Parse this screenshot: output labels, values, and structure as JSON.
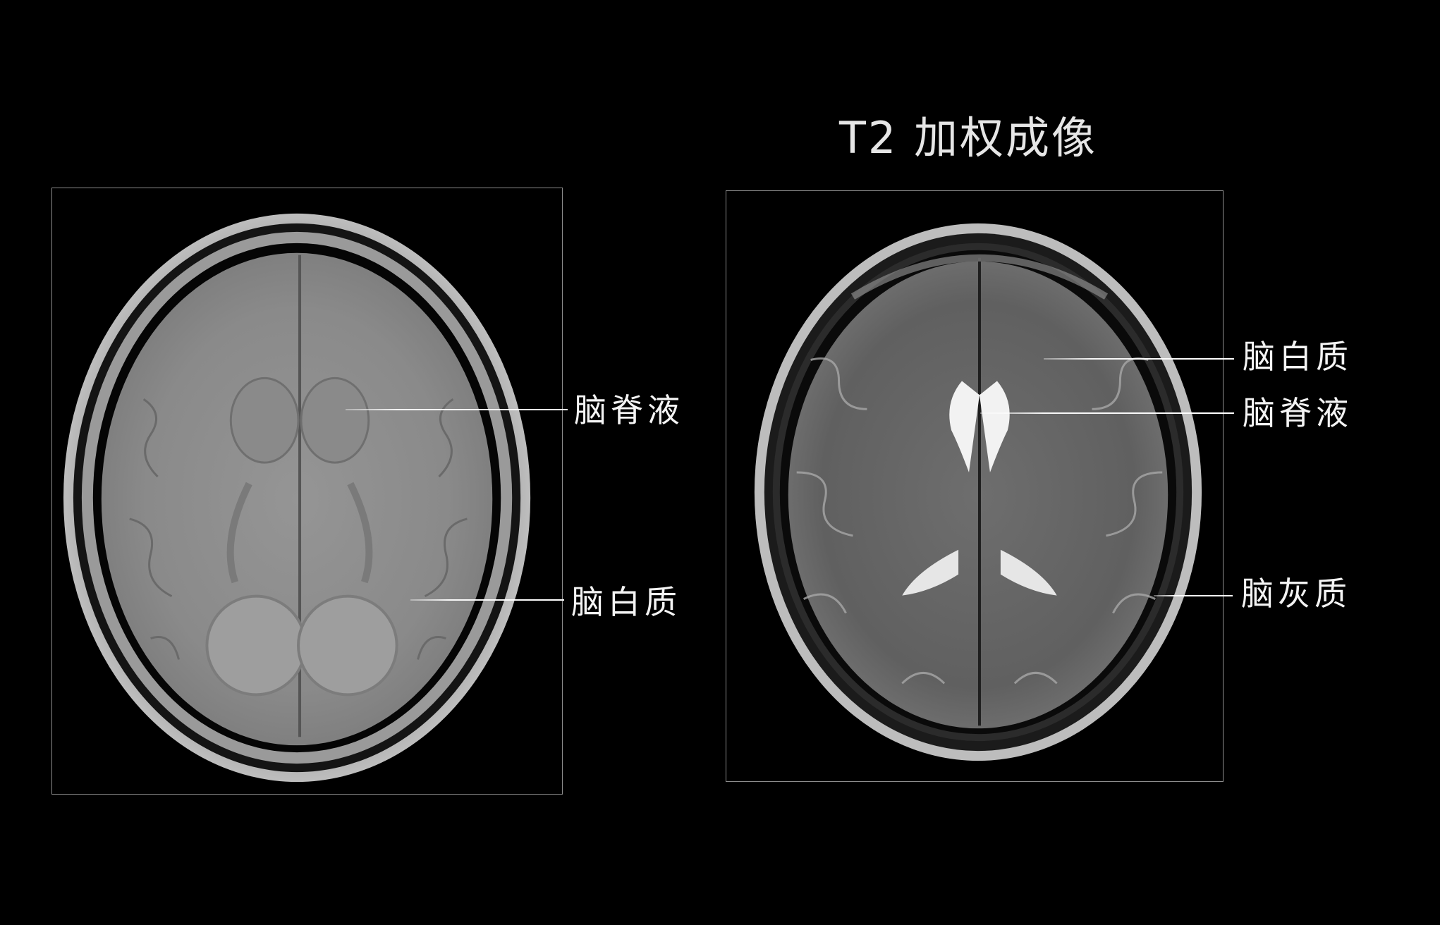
{
  "title": "T2 加权成像",
  "left_panel": {
    "annotations": [
      {
        "label": "脑脊液"
      },
      {
        "label": "脑白质"
      }
    ]
  },
  "right_panel": {
    "annotations": [
      {
        "label": "脑白质"
      },
      {
        "label": "脑脊液"
      },
      {
        "label": "脑灰质"
      }
    ]
  }
}
